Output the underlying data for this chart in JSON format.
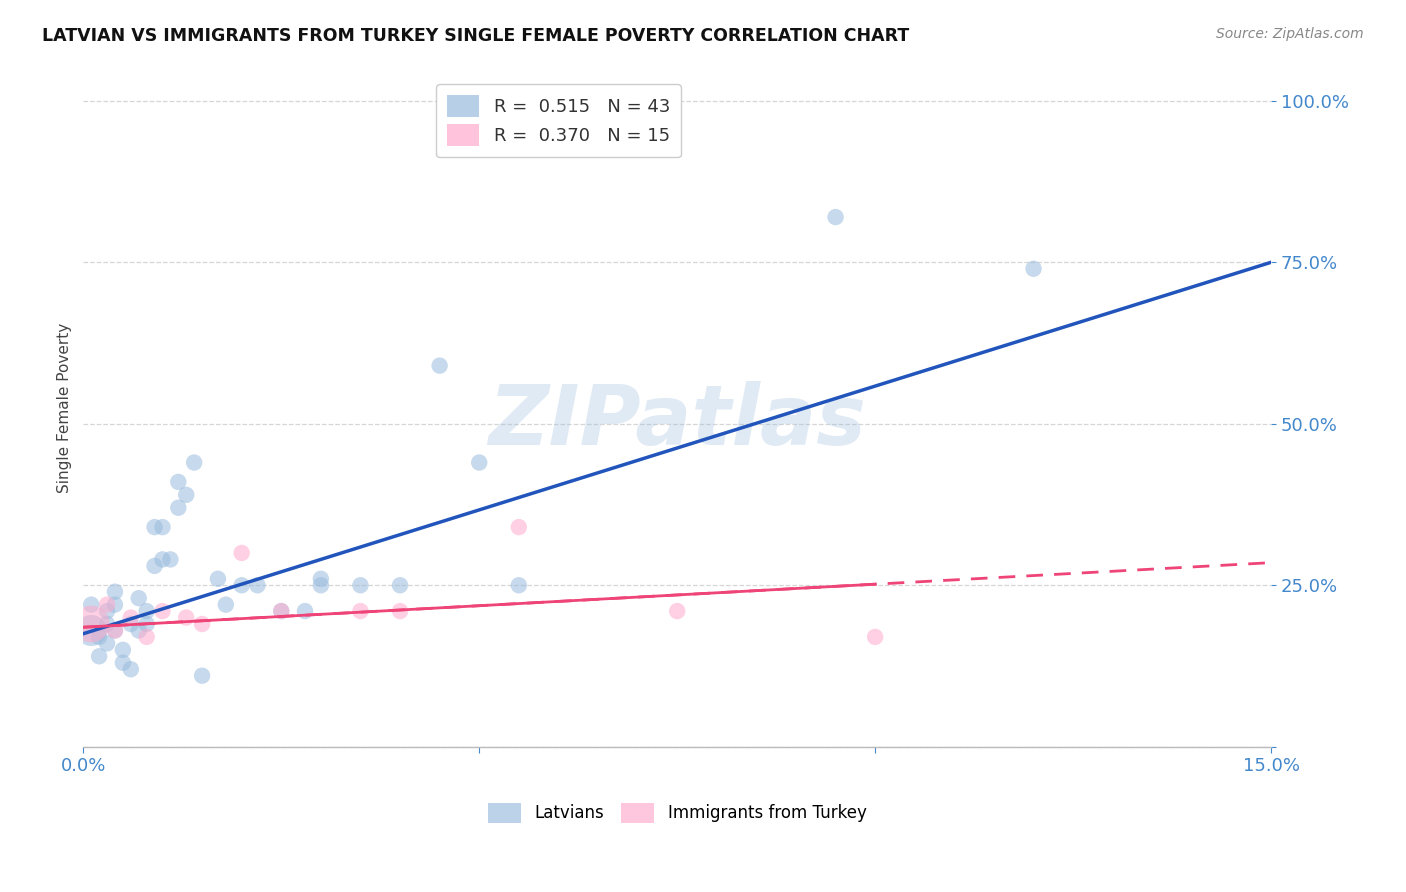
{
  "title": "LATVIAN VS IMMIGRANTS FROM TURKEY SINGLE FEMALE POVERTY CORRELATION CHART",
  "source": "Source: ZipAtlas.com",
  "ylabel_label": "Single Female Poverty",
  "xlim": [
    0.0,
    0.15
  ],
  "ylim": [
    0.0,
    1.05
  ],
  "latvian_R": 0.515,
  "latvian_N": 43,
  "turkey_R": 0.37,
  "turkey_N": 15,
  "latvian_color": "#99bbdd",
  "turkey_color": "#ffaacc",
  "trend_latvian_color": "#2255bb",
  "trend_turkey_color": "#ee4477",
  "latvian_x": [
    0.001,
    0.001,
    0.002,
    0.002,
    0.003,
    0.003,
    0.003,
    0.004,
    0.004,
    0.004,
    0.005,
    0.005,
    0.006,
    0.006,
    0.007,
    0.007,
    0.008,
    0.008,
    0.009,
    0.009,
    0.01,
    0.01,
    0.011,
    0.012,
    0.012,
    0.013,
    0.014,
    0.015,
    0.017,
    0.018,
    0.02,
    0.022,
    0.025,
    0.028,
    0.03,
    0.03,
    0.035,
    0.04,
    0.045,
    0.05,
    0.055,
    0.095,
    0.12
  ],
  "latvian_y": [
    0.18,
    0.22,
    0.17,
    0.14,
    0.19,
    0.16,
    0.21,
    0.18,
    0.22,
    0.24,
    0.15,
    0.13,
    0.19,
    0.12,
    0.23,
    0.18,
    0.21,
    0.19,
    0.28,
    0.34,
    0.29,
    0.34,
    0.29,
    0.37,
    0.41,
    0.39,
    0.44,
    0.11,
    0.26,
    0.22,
    0.25,
    0.25,
    0.21,
    0.21,
    0.25,
    0.26,
    0.25,
    0.25,
    0.59,
    0.44,
    0.25,
    0.82,
    0.74
  ],
  "turkey_x": [
    0.001,
    0.003,
    0.004,
    0.006,
    0.008,
    0.01,
    0.013,
    0.015,
    0.02,
    0.025,
    0.035,
    0.04,
    0.055,
    0.075,
    0.1
  ],
  "turkey_y": [
    0.19,
    0.22,
    0.18,
    0.2,
    0.17,
    0.21,
    0.2,
    0.19,
    0.3,
    0.21,
    0.21,
    0.21,
    0.34,
    0.21,
    0.17
  ],
  "dot_size": 140,
  "turkey_dot_size_large": 700,
  "watermark_text": "ZIPatlas",
  "watermark_color": "#99bbdd",
  "watermark_alpha": 0.3,
  "background_color": "#ffffff",
  "grid_color": "#cccccc",
  "tick_color": "#4488cc",
  "title_color": "#111111",
  "source_color": "#888888",
  "ylabel_color": "#444444"
}
